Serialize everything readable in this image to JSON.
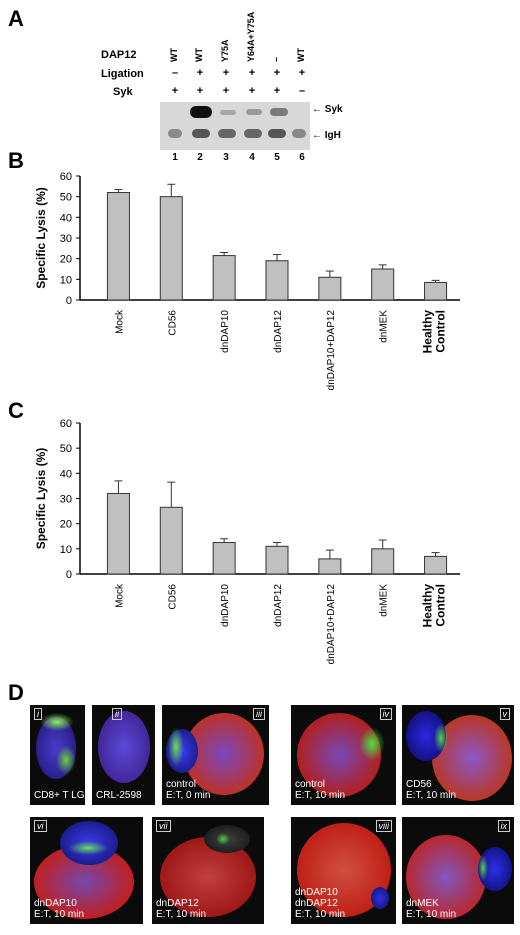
{
  "panels": {
    "a": "A",
    "b": "B",
    "c": "C",
    "d": "D"
  },
  "western": {
    "row_labels": [
      "DAP12",
      "Ligation",
      "Syk"
    ],
    "lanes": [
      {
        "dap12": "WT",
        "ligation": "–",
        "syk": "+",
        "num": "1"
      },
      {
        "dap12": "WT",
        "ligation": "+",
        "syk": "+",
        "num": "2"
      },
      {
        "dap12": "Y75A",
        "ligation": "+",
        "syk": "+",
        "num": "3"
      },
      {
        "dap12": "Y64A+Y75A",
        "ligation": "+",
        "syk": "+",
        "num": "4"
      },
      {
        "dap12": "–",
        "ligation": "+",
        "syk": "+",
        "num": "5"
      },
      {
        "dap12": "WT",
        "ligation": "+",
        "syk": "–",
        "num": "6"
      }
    ],
    "band_labels": [
      "Syk",
      "IgH"
    ]
  },
  "chart_data": [
    {
      "type": "bar",
      "categories": [
        "Mock",
        "CD56",
        "dnDAP10",
        "dnDAP12",
        "dnDAP10+DAP12",
        "dnMEK",
        "Healthy Control"
      ],
      "values": [
        52,
        50,
        21.5,
        19,
        11,
        15,
        8.5
      ],
      "errors": [
        1.5,
        6,
        1.5,
        3,
        3,
        2,
        1
      ],
      "ylabel": "Specific Lysis (%)",
      "ylim": [
        0,
        60
      ],
      "yticks": [
        "0",
        "10",
        "20",
        "30",
        "40",
        "50",
        "60"
      ],
      "grid": false,
      "color": "#c0c0c0"
    },
    {
      "type": "bar",
      "categories": [
        "Mock",
        "CD56",
        "dnDAP10",
        "dnDAP12",
        "dnDAP10+DAP12",
        "dnMEK",
        "Healthy Control"
      ],
      "values": [
        32,
        26.5,
        12.5,
        11,
        6,
        10,
        7
      ],
      "errors": [
        5,
        10,
        1.5,
        1.5,
        3.5,
        3.5,
        1.5
      ],
      "ylabel": "Specific Lysis (%)",
      "ylim": [
        0,
        60
      ],
      "yticks": [
        "0",
        "10",
        "20",
        "30",
        "40",
        "50",
        "60"
      ],
      "grid": false,
      "color": "#c0c0c0"
    }
  ],
  "micrographs": [
    {
      "roman": "i",
      "caption": "CD8+ T LGL"
    },
    {
      "roman": "ii",
      "caption": "CRL-2598"
    },
    {
      "roman": "iii",
      "caption": "control\nE:T, 0 min"
    },
    {
      "roman": "iv",
      "caption": "control\nE:T, 10 min"
    },
    {
      "roman": "v",
      "caption": "CD56\nE:T, 10 min"
    },
    {
      "roman": "vi",
      "caption": "dnDAP10\nE:T, 10 min"
    },
    {
      "roman": "vii",
      "caption": "dnDAP12\nE:T, 10 min"
    },
    {
      "roman": "viii",
      "caption": "dnDAP10\ndnDAP12\nE:T, 10 min"
    },
    {
      "roman": "ix",
      "caption": "dnMEK\nE:T, 10 min"
    }
  ]
}
